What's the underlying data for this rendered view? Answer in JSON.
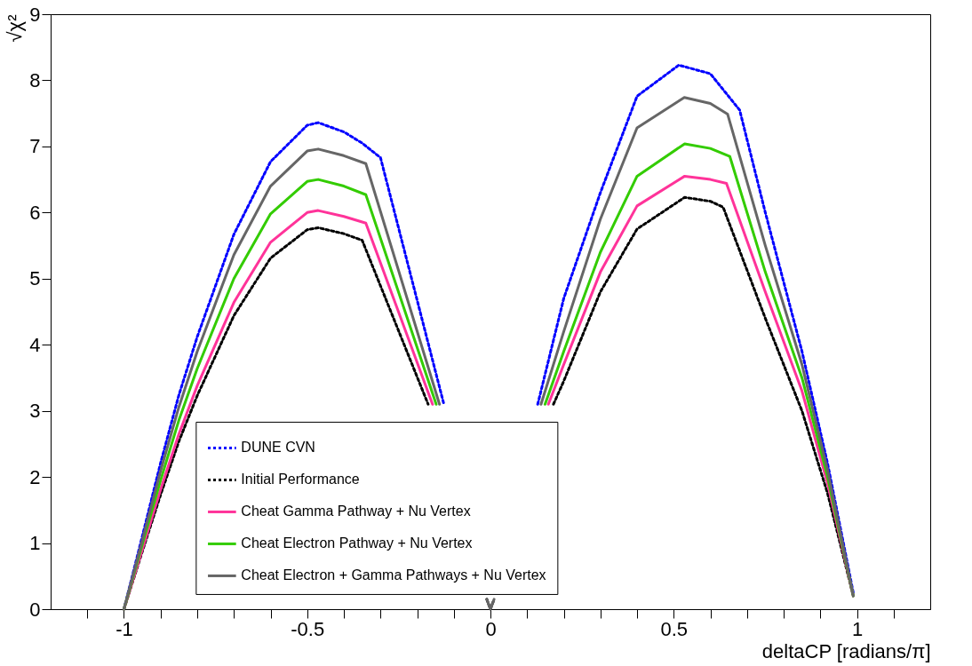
{
  "chart_data": {
    "type": "line",
    "xlabel": "deltaCP [radians/π]",
    "ylabel": "√χ²",
    "xlim": [
      -1.2,
      1.2
    ],
    "ylim": [
      0,
      9
    ],
    "xticks": [
      {
        "value": -1.1,
        "label": null
      },
      -1,
      {
        "value": -0.9,
        "label": null
      },
      {
        "value": -0.8,
        "label": null
      },
      {
        "value": -0.7,
        "label": null
      },
      {
        "value": -0.6,
        "label": null
      },
      -0.5,
      {
        "value": -0.4,
        "label": null
      },
      {
        "value": -0.3,
        "label": null
      },
      {
        "value": -0.2,
        "label": null
      },
      {
        "value": -0.1,
        "label": null
      },
      0,
      {
        "value": 0.1,
        "label": null
      },
      {
        "value": 0.2,
        "label": null
      },
      {
        "value": 0.3,
        "label": null
      },
      {
        "value": 0.4,
        "label": null
      },
      0.5,
      {
        "value": 0.6,
        "label": null
      },
      {
        "value": 0.7,
        "label": null
      },
      {
        "value": 0.8,
        "label": null
      },
      {
        "value": 0.9,
        "label": null
      },
      1,
      {
        "value": 1.1,
        "label": null
      }
    ],
    "yticks": [
      0,
      1,
      2,
      3,
      4,
      5,
      6,
      7,
      8,
      9
    ],
    "grid": false,
    "legend": "bottom",
    "marker": "none",
    "series": [
      {
        "name": "DUNE CVN",
        "color": "#0000ff",
        "line_style": "dashed",
        "x": [
          -1,
          -0.95,
          -0.9,
          -0.85,
          -0.8,
          -0.7,
          -0.6,
          -0.5,
          -0.47,
          -0.4,
          -0.35,
          -0.3,
          -0.127,
          -0.06,
          -0.01,
          0,
          0.01,
          0.06,
          0.129,
          0.2,
          0.3,
          0.4,
          0.514,
          0.6,
          0.68,
          0.75,
          0.85,
          0.92,
          0.99
        ],
        "values": [
          0,
          1.1,
          2.21,
          3.24,
          4.12,
          5.67,
          6.77,
          7.32,
          7.36,
          7.22,
          7.05,
          6.83,
          3.1,
          null,
          null,
          null,
          null,
          null,
          3.1,
          4.7,
          6.3,
          7.76,
          8.23,
          8.1,
          7.55,
          6.0,
          3.9,
          2.2,
          0.25
        ]
      },
      {
        "name": "Initial Performance",
        "color": "#000000",
        "line_style": "dashed",
        "x": [
          -1,
          -0.95,
          -0.9,
          -0.85,
          -0.8,
          -0.7,
          -0.6,
          -0.5,
          -0.47,
          -0.4,
          -0.35,
          -0.17,
          -0.06,
          -0.01,
          0,
          0.01,
          0.06,
          0.172,
          0.2,
          0.3,
          0.4,
          0.53,
          0.6,
          0.635,
          0.75,
          0.85,
          0.92,
          0.99
        ],
        "values": [
          0,
          0.87,
          1.73,
          2.54,
          3.23,
          4.44,
          5.31,
          5.74,
          5.77,
          5.68,
          5.58,
          3.1,
          null,
          0.15,
          0,
          0.15,
          null,
          3.1,
          3.45,
          4.8,
          5.75,
          6.23,
          6.17,
          6.08,
          4.4,
          3.0,
          1.75,
          0.2
        ]
      },
      {
        "name": "Cheat Gamma Pathway + Nu Vertex",
        "color": "#ff3399",
        "line_style": "solid",
        "x": [
          -1,
          -0.95,
          -0.9,
          -0.85,
          -0.8,
          -0.7,
          -0.6,
          -0.5,
          -0.47,
          -0.4,
          -0.34,
          -0.158,
          -0.06,
          -0.01,
          0,
          0.01,
          0.06,
          0.158,
          0.2,
          0.3,
          0.4,
          0.53,
          0.6,
          0.644,
          0.75,
          0.85,
          0.92,
          0.99
        ],
        "values": [
          0,
          0.9,
          1.81,
          2.65,
          3.38,
          4.64,
          5.55,
          6.0,
          6.03,
          5.94,
          5.84,
          3.1,
          null,
          null,
          null,
          null,
          null,
          3.1,
          3.7,
          5.1,
          6.1,
          6.55,
          6.5,
          6.44,
          4.8,
          3.3,
          1.9,
          0.2
        ]
      },
      {
        "name": "Cheat Electron Pathway + Nu Vertex",
        "color": "#33cc00",
        "line_style": "solid",
        "x": [
          -1,
          -0.95,
          -0.9,
          -0.85,
          -0.8,
          -0.7,
          -0.6,
          -0.5,
          -0.47,
          -0.4,
          -0.34,
          -0.148,
          -0.06,
          -0.01,
          0,
          0.01,
          0.06,
          0.149,
          0.2,
          0.3,
          0.4,
          0.53,
          0.6,
          0.653,
          0.75,
          0.85,
          0.92,
          0.99
        ],
        "values": [
          0,
          0.98,
          1.95,
          2.86,
          3.64,
          5.0,
          5.98,
          6.47,
          6.5,
          6.4,
          6.27,
          3.1,
          null,
          null,
          null,
          null,
          null,
          3.1,
          3.9,
          5.4,
          6.55,
          7.04,
          6.97,
          6.85,
          5.1,
          3.5,
          2.0,
          0.2
        ]
      },
      {
        "name": "Cheat Electron + Gamma Pathways + Nu Vertex",
        "color": "#666666",
        "line_style": "solid",
        "x": [
          -1,
          -0.95,
          -0.9,
          -0.85,
          -0.8,
          -0.7,
          -0.6,
          -0.5,
          -0.47,
          -0.4,
          -0.34,
          -0.139,
          -0.06,
          -0.01,
          0,
          0.01,
          0.06,
          0.138,
          0.2,
          0.3,
          0.4,
          0.529,
          0.6,
          0.647,
          0.75,
          0.85,
          0.92,
          0.99
        ],
        "values": [
          0,
          1.04,
          2.09,
          3.06,
          3.9,
          5.36,
          6.4,
          6.93,
          6.96,
          6.86,
          6.74,
          3.1,
          null,
          0.15,
          0,
          0.15,
          null,
          3.1,
          4.2,
          5.9,
          7.28,
          7.74,
          7.65,
          7.49,
          5.5,
          3.7,
          2.1,
          0.2
        ]
      }
    ]
  }
}
